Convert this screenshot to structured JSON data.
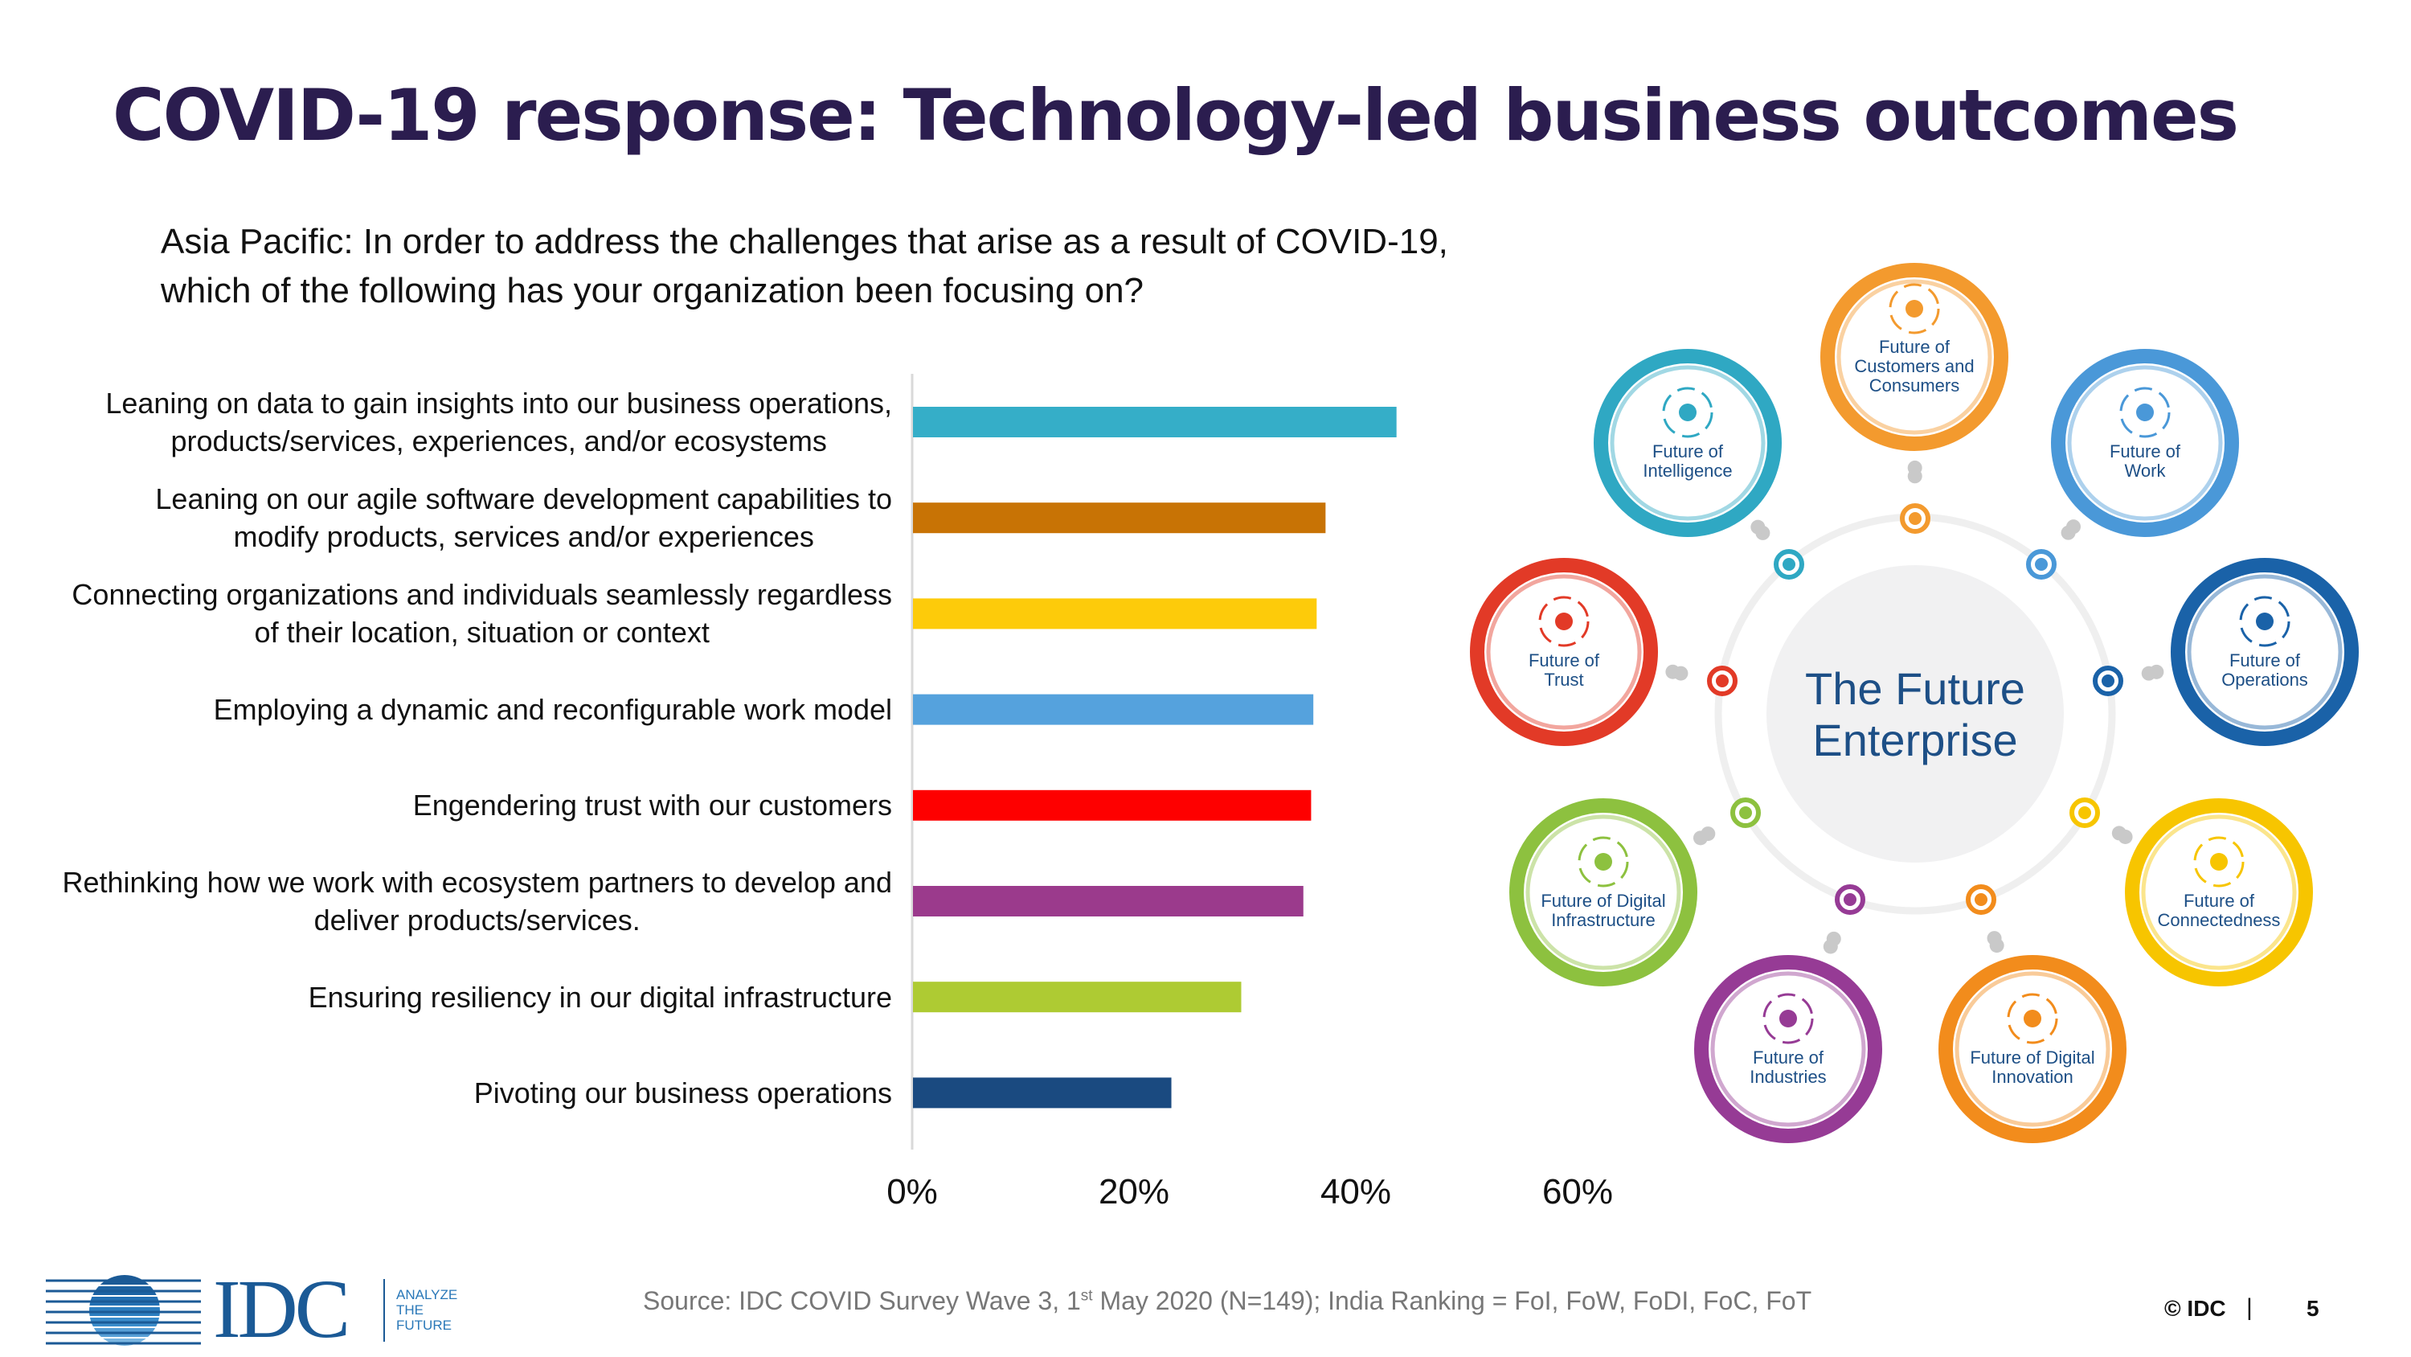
{
  "slide": {
    "title": "COVID-19 response: Technology-led business outcomes",
    "question_line1": "Asia Pacific: In order to address the challenges that arise as a result of COVID-19,",
    "question_line2": "which of the following has your organization been focusing on?"
  },
  "chart_data": {
    "type": "bar",
    "orientation": "horizontal",
    "title": "",
    "xlabel": "",
    "ylabel": "",
    "xlim": [
      0,
      60
    ],
    "x_ticks": [
      "0%",
      "20%",
      "40%",
      "60%"
    ],
    "x_tick_values": [
      0,
      20,
      40,
      60
    ],
    "grid": false,
    "legend": "none",
    "categories": [
      {
        "lines": [
          "Leaning on data to gain insights into our business operations,",
          "products/services, experiences, and/or ecosystems"
        ],
        "value": 43.6,
        "color": "#35aec8"
      },
      {
        "lines": [
          "Leaning on our agile software development capabilities to",
          "modify products, services and/or experiences"
        ],
        "value": 37.2,
        "color": "#c87305"
      },
      {
        "lines": [
          "Connecting organizations and individuals seamlessly regardless",
          "of their location, situation or context"
        ],
        "value": 36.4,
        "color": "#fdcb0a"
      },
      {
        "lines": [
          "Employing a dynamic and reconfigurable work model"
        ],
        "value": 36.1,
        "color": "#55a2dd"
      },
      {
        "lines": [
          "Engendering trust with our customers"
        ],
        "value": 35.9,
        "color": "#fe0000"
      },
      {
        "lines": [
          "Rethinking how we work with ecosystem partners to develop and",
          "deliver products/services."
        ],
        "value": 35.2,
        "color": "#9b3a8c"
      },
      {
        "lines": [
          "Ensuring resiliency in our digital infrastructure"
        ],
        "value": 29.6,
        "color": "#aecb33"
      },
      {
        "lines": [
          "Pivoting our business operations"
        ],
        "value": 23.3,
        "color": "#1a4a80"
      }
    ]
  },
  "diagram": {
    "center_line1": "The Future",
    "center_line2": "Enterprise",
    "nodes": [
      {
        "id": "intelligence",
        "lines": [
          "Future  of",
          "Intelligence"
        ],
        "color": "#2fa8c3",
        "icon": "head-gear-icon"
      },
      {
        "id": "customers",
        "lines": [
          "Future of",
          "Customers and",
          "Consumers"
        ],
        "color": "#f39a2e",
        "icon": "touch-tablet-icon"
      },
      {
        "id": "work",
        "lines": [
          "Future  of",
          "Work"
        ],
        "color": "#4a98d8",
        "icon": "people-group-icon"
      },
      {
        "id": "trust",
        "lines": [
          "Future  of",
          "Trust"
        ],
        "color": "#e23a27",
        "icon": "shield-check-icon"
      },
      {
        "id": "operations",
        "lines": [
          "Future  of",
          "Operations"
        ],
        "color": "#1a62a8",
        "icon": "gears-icon"
      },
      {
        "id": "digital-infrastructure",
        "lines": [
          "Future of Digital",
          "Infrastructure"
        ],
        "color": "#8dc13f",
        "icon": "chip-icon"
      },
      {
        "id": "connectedness",
        "lines": [
          "Future of",
          "Connectedness"
        ],
        "color": "#f7c500",
        "icon": "wifi-icon"
      },
      {
        "id": "industries",
        "lines": [
          "Future  of",
          "Industries"
        ],
        "color": "#963b95",
        "icon": "hexagons-icon"
      },
      {
        "id": "digital-innovation",
        "lines": [
          "Future of Digital",
          "Innovation"
        ],
        "color": "#f28c1c",
        "icon": "brain-bubble-icon"
      }
    ]
  },
  "footer": {
    "logo_text": "IDC",
    "logo_tag_1": "ANALYZE",
    "logo_tag_2": "THE",
    "logo_tag_3": "FUTURE",
    "source_pre": "Source: IDC COVID Survey Wave 3, 1",
    "source_sup": "st",
    "source_post": " May 2020 (N=149); India Ranking = FoI, FoW, FoDI, FoC, FoT",
    "copyright": "© IDC",
    "separator": "|",
    "page_number": "5"
  },
  "colors": {
    "title": "#2b1d4f",
    "diagram_text": "#1d4f86",
    "source_text": "#777777"
  }
}
